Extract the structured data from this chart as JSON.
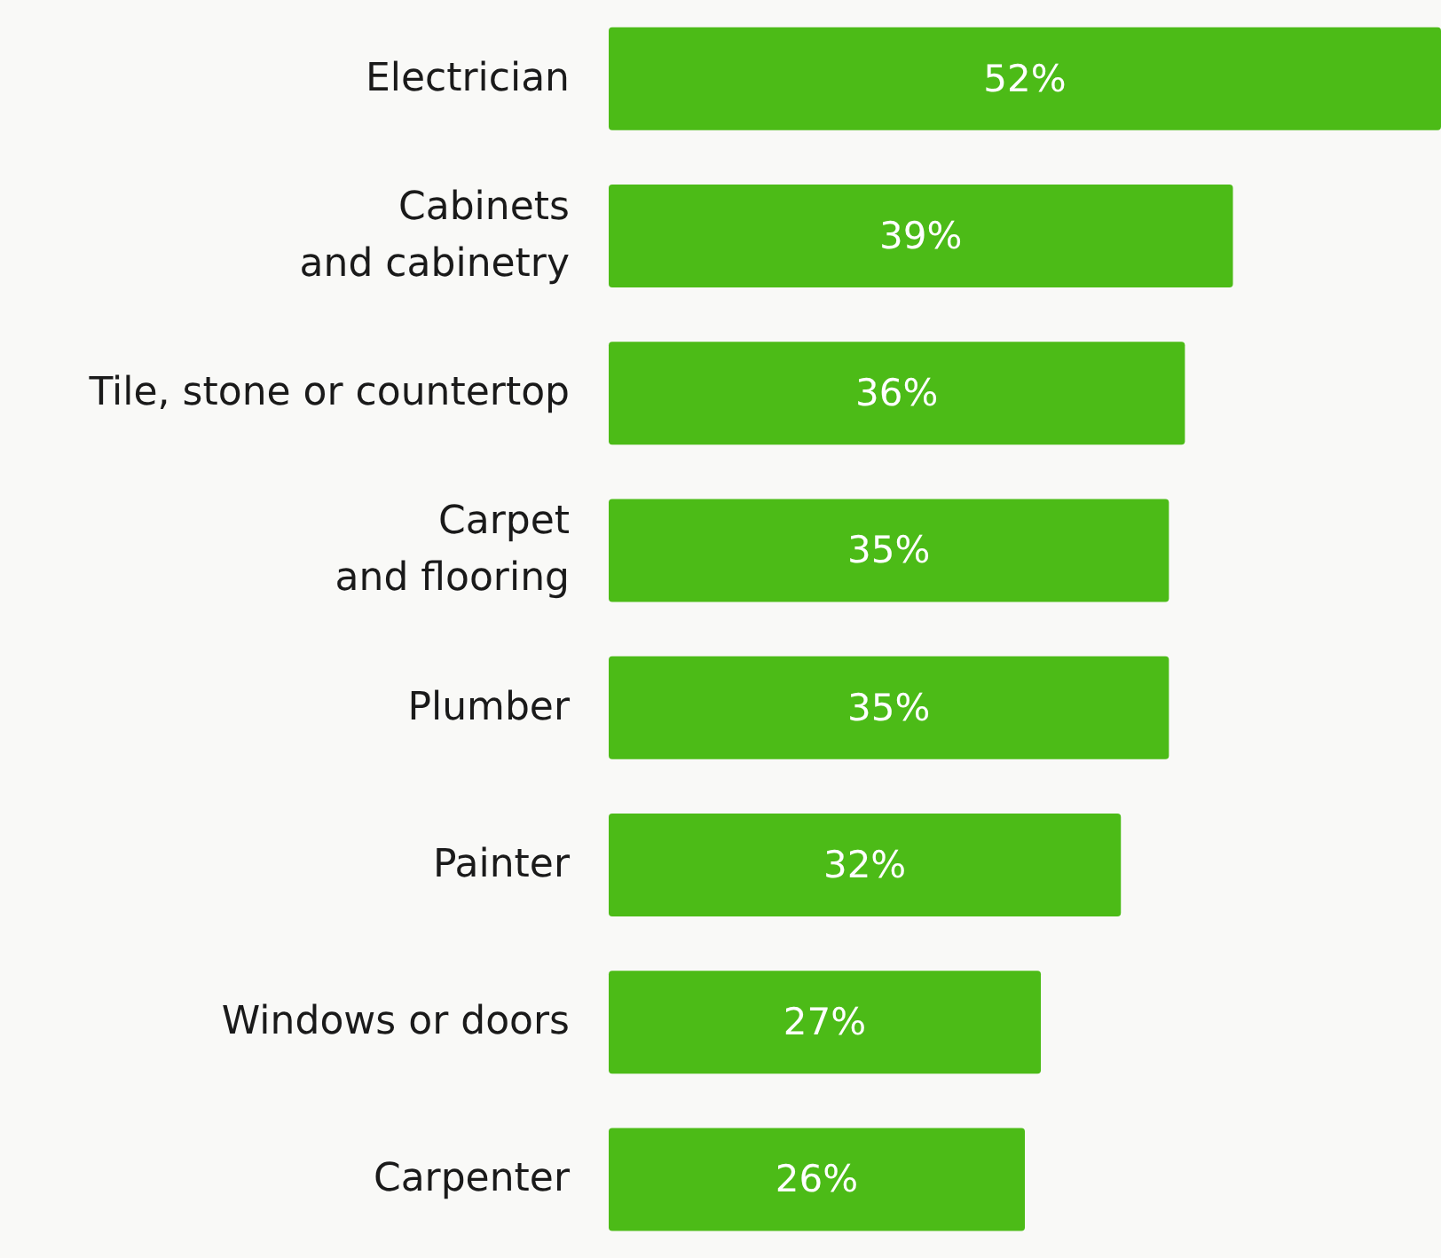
{
  "chart_data": {
    "type": "bar",
    "orientation": "horizontal",
    "categories": [
      "Electrician",
      "Cabinets\nand cabinetry",
      "Tile, stone or countertop",
      "Carpet\nand flooring",
      "Plumber",
      "Painter",
      "Windows or doors",
      "Carpenter"
    ],
    "values": [
      52,
      39,
      36,
      35,
      35,
      32,
      27,
      26
    ],
    "value_labels": [
      "52%",
      "39%",
      "36%",
      "35%",
      "35%",
      "32%",
      "27%",
      "26%"
    ],
    "color": "#4cbb17"
  }
}
